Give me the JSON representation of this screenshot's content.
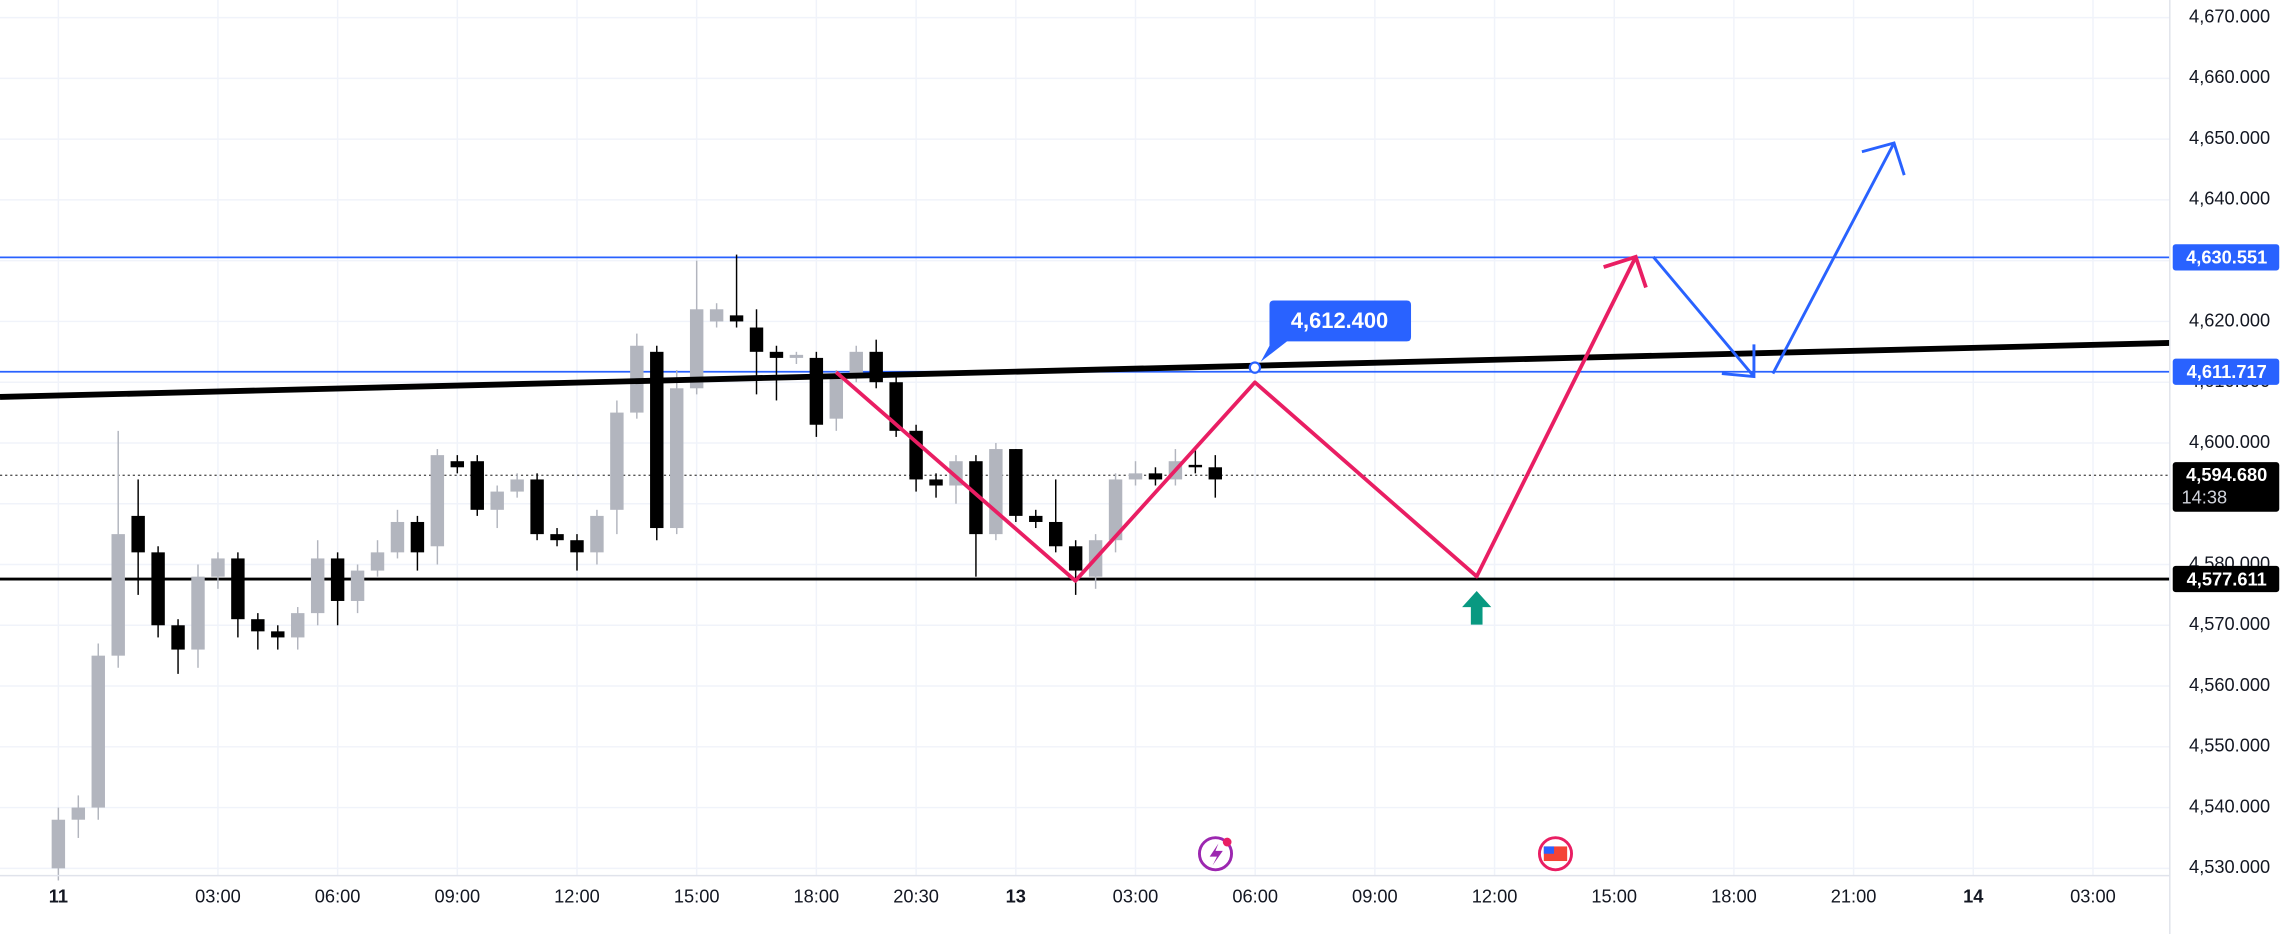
{
  "chart_data": {
    "type": "candlestick",
    "categories": [
      "11",
      null,
      null,
      null,
      null,
      null,
      null,
      null,
      "03:00",
      null,
      null,
      null,
      null,
      null,
      "06:00",
      null,
      null,
      null,
      null,
      null,
      "09:00",
      null,
      null,
      null,
      null,
      null,
      "12:00",
      null,
      null,
      null,
      null,
      null,
      "15:00",
      null,
      null,
      null,
      null,
      null,
      "18:00",
      null,
      null,
      null,
      null,
      "20:30",
      null,
      null,
      null,
      null,
      "13",
      null,
      null,
      null,
      null,
      null,
      "03:00",
      null,
      null,
      null,
      null,
      null,
      "06:00",
      null,
      null,
      null,
      null,
      null,
      "09:00",
      null,
      null,
      null,
      null,
      null,
      "12:00",
      null,
      null,
      null,
      null,
      null,
      "15:00",
      null,
      null,
      null,
      null,
      null,
      "18:00",
      null,
      null,
      null,
      null,
      null,
      "21:00",
      null,
      null,
      null,
      null,
      null,
      "14",
      null,
      null,
      null,
      null,
      null,
      "03:00",
      null,
      null,
      null
    ],
    "open": [
      4530,
      4538,
      4540,
      4565,
      4588,
      4582,
      4570,
      4566,
      4578,
      4581,
      4571,
      4569,
      4568,
      4572,
      4581,
      4574,
      4579,
      4582,
      4587,
      4583,
      4597,
      4597,
      4589,
      4592,
      4594,
      4585,
      4584,
      4582,
      4589,
      4605,
      4615,
      4586,
      4609,
      4620,
      4621,
      4619,
      4615,
      4614,
      4614,
      4604,
      4611,
      4615,
      4610,
      4602,
      4594,
      4593,
      4597,
      4585,
      4599,
      4588,
      4587,
      4583,
      4578,
      4584,
      4594,
      4595,
      4594,
      4596.4,
      4596,
      null,
      null,
      null,
      null,
      null,
      null,
      null,
      null,
      null,
      null,
      null,
      null,
      null,
      null,
      null,
      null,
      null,
      null,
      null,
      null,
      null,
      null,
      null,
      null,
      null,
      null,
      null,
      null,
      null,
      null,
      null,
      null,
      null,
      null,
      null,
      null,
      null,
      null,
      null,
      null,
      null,
      null,
      null,
      null,
      null,
      null,
      null
    ],
    "high": [
      4540,
      4542,
      4567,
      4602,
      4594,
      4583,
      4571,
      4580,
      4582,
      4582,
      4572,
      4570,
      4573,
      4584,
      4582,
      4580,
      4584,
      4589,
      4588,
      4599,
      4598,
      4598,
      4593,
      4595,
      4595,
      4586,
      4585,
      4589,
      4607,
      4618,
      4616,
      4612,
      4630,
      4623,
      4631,
      4622,
      4616,
      4615,
      4615,
      4612,
      4616,
      4617,
      4611,
      4603,
      4595,
      4598,
      4598,
      4600,
      4599,
      4589,
      4594,
      4584,
      4585,
      4595,
      4597,
      4596,
      4599,
      4599,
      4598,
      null,
      null,
      null,
      null,
      null,
      null,
      null,
      null,
      null,
      null,
      null,
      null,
      null,
      null,
      null,
      null,
      null,
      null,
      null,
      null,
      null,
      null,
      null,
      null,
      null,
      null,
      null,
      null,
      null,
      null,
      null,
      null,
      null,
      null,
      null,
      null,
      null,
      null,
      null,
      null,
      null,
      null,
      null,
      null,
      null,
      null,
      null
    ],
    "low": [
      4528,
      4535,
      4538,
      4563,
      4575,
      4568,
      4562,
      4563,
      4576,
      4568,
      4566,
      4566,
      4566,
      4570,
      4570,
      4572,
      4578,
      4581,
      4579,
      4580,
      4595,
      4588,
      4586,
      4591,
      4584,
      4583,
      4579,
      4580,
      4585,
      4604,
      4584,
      4585,
      4608,
      4619,
      4619,
      4608,
      4607,
      4613,
      4601,
      4602,
      4610,
      4609,
      4601,
      4592,
      4591,
      4590,
      4578,
      4584,
      4587,
      4586,
      4582,
      4575,
      4576,
      4582,
      4593,
      4593,
      4593,
      4595,
      4591,
      null,
      null,
      null,
      null,
      null,
      null,
      null,
      null,
      null,
      null,
      null,
      null,
      null,
      null,
      null,
      null,
      null,
      null,
      null,
      null,
      null,
      null,
      null,
      null,
      null,
      null,
      null,
      null,
      null,
      null,
      null,
      null,
      null,
      null,
      null,
      null,
      null,
      null,
      null,
      null,
      null,
      null,
      null,
      null,
      null,
      null,
      null
    ],
    "close": [
      4538,
      4540,
      4565,
      4585,
      4582,
      4570,
      4566,
      4578,
      4581,
      4571,
      4569,
      4568,
      4572,
      4581,
      4574,
      4579,
      4582,
      4587,
      4582,
      4598,
      4596,
      4589,
      4592,
      4594,
      4585,
      4584,
      4582,
      4588,
      4605,
      4616,
      4586,
      4609,
      4622,
      4622,
      4620,
      4615,
      4614,
      4614.5,
      4603,
      4611,
      4615,
      4610,
      4602,
      4594,
      4593,
      4597,
      4585,
      4599,
      4588,
      4587,
      4583,
      4579,
      4584,
      4594,
      4595,
      4594,
      4597,
      4596,
      4594,
      null,
      null,
      null,
      null,
      null,
      null,
      null,
      null,
      null,
      null,
      null,
      null,
      null,
      null,
      null,
      null,
      null,
      null,
      null,
      null,
      null,
      null,
      null,
      null,
      null,
      null,
      null,
      null,
      null,
      null,
      null,
      null,
      null,
      null,
      null,
      null,
      null,
      null,
      null,
      null,
      null,
      null,
      null,
      null,
      null,
      null,
      null
    ],
    "up_color": "#b2b5be",
    "down_color": "#000000",
    "ylim": [
      4528.8,
      4672.9
    ],
    "yticks": [
      {
        "value": 4530,
        "label": "4,530.000"
      },
      {
        "value": 4540,
        "label": "4,540.000"
      },
      {
        "value": 4550,
        "label": "4,550.000"
      },
      {
        "value": 4560,
        "label": "4,560.000"
      },
      {
        "value": 4570,
        "label": "4,570.000"
      },
      {
        "value": 4580,
        "label": "4,580.000"
      },
      {
        "value": 4590,
        "label": "4,590.000"
      },
      {
        "value": 4600,
        "label": "4,600.000"
      },
      {
        "value": 4610,
        "label": "4,610.000"
      },
      {
        "value": 4620,
        "label": "4,620.000"
      },
      {
        "value": 4630,
        "label": "4,630.000"
      },
      {
        "value": 4640,
        "label": "4,640.000"
      },
      {
        "value": 4650,
        "label": "4,650.000"
      },
      {
        "value": 4660,
        "label": "4,660.000"
      },
      {
        "value": 4670,
        "label": "4,670.000"
      }
    ],
    "grid": true,
    "price_lines": [
      {
        "value": 4630.551,
        "label": "4,630.551",
        "color": "#2962ff"
      },
      {
        "value": 4611.717,
        "label": "4,611.717",
        "color": "#2962ff"
      },
      {
        "value": 4577.611,
        "label": "4,577.611",
        "color": "#000000"
      }
    ],
    "last_price": {
      "value": 4594.68,
      "label": "4,594.680",
      "countdown": "14:38",
      "color": "#000000"
    },
    "callout": {
      "value": 4612.4,
      "label": "4,612.400",
      "color": "#2962ff"
    }
  }
}
